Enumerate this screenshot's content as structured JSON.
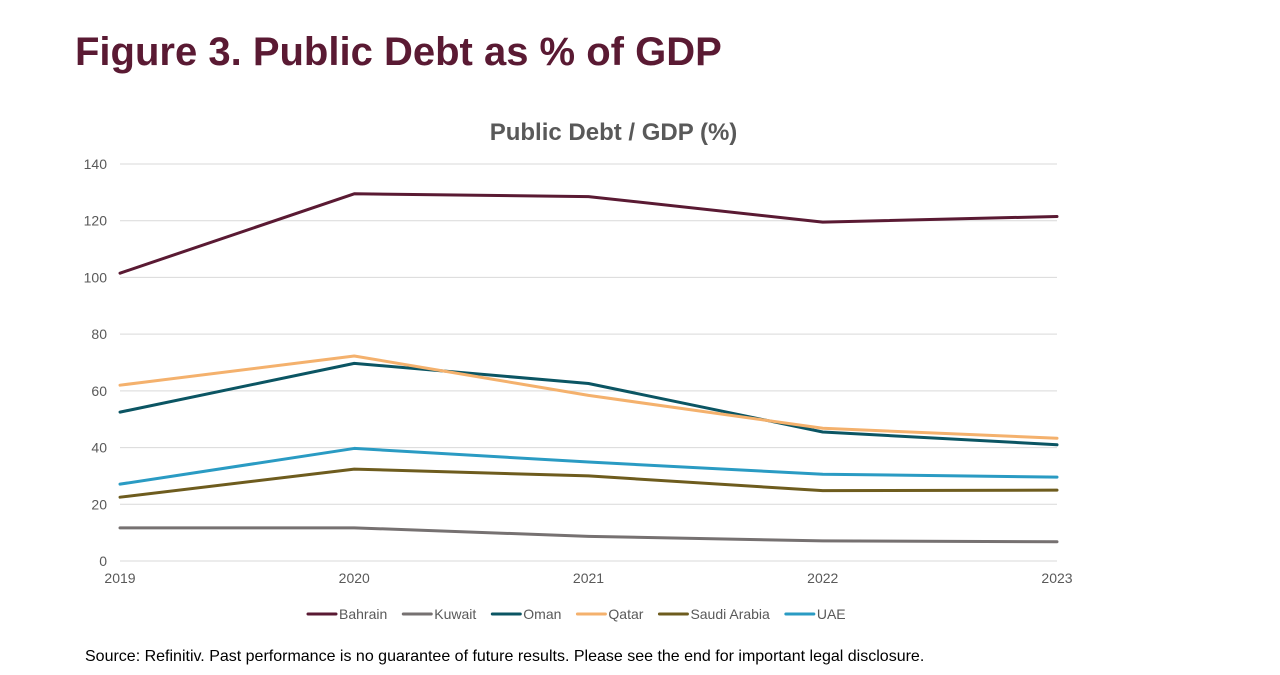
{
  "page": {
    "title": "Figure 3. Public Debt as % of GDP",
    "source": "Source: Refinitiv. Past performance is no guarantee of future results. Please see the end for important legal disclosure."
  },
  "chart_data": {
    "type": "line",
    "title": "Public Debt / GDP (%)",
    "xlabel": "",
    "ylabel": "",
    "categories": [
      "2019",
      "2020",
      "2021",
      "2022",
      "2023"
    ],
    "ylim": [
      0,
      140
    ],
    "yticks": [
      0,
      20,
      40,
      60,
      80,
      100,
      120,
      140
    ],
    "grid": true,
    "legend_position": "bottom",
    "series": [
      {
        "name": "Bahrain",
        "color": "#5a1a33",
        "values": [
          101.5,
          129.5,
          128.5,
          119.5,
          121.5
        ]
      },
      {
        "name": "Kuwait",
        "color": "#767171",
        "values": [
          11.7,
          11.7,
          8.7,
          7.1,
          6.8
        ]
      },
      {
        "name": "Oman",
        "color": "#0b5563",
        "values": [
          52.5,
          69.7,
          62.6,
          45.5,
          41.0
        ]
      },
      {
        "name": "Qatar",
        "color": "#f4b16d",
        "values": [
          62.0,
          72.3,
          58.4,
          46.8,
          43.3
        ]
      },
      {
        "name": "Saudi Arabia",
        "color": "#6e5c1e",
        "values": [
          22.5,
          32.4,
          30.0,
          24.8,
          25.0
        ]
      },
      {
        "name": "UAE",
        "color": "#2a9bc3",
        "values": [
          27.1,
          39.7,
          34.9,
          30.6,
          29.6
        ]
      }
    ]
  }
}
